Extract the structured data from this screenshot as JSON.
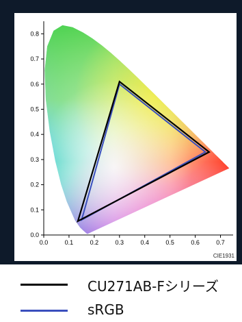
{
  "chart_data": {
    "type": "scatter",
    "source_label": "CIE1931",
    "xlim": [
      0.0,
      0.75
    ],
    "ylim": [
      0.0,
      0.85
    ],
    "x_ticks": [
      "0.0",
      "0.1",
      "0.2",
      "0.3",
      "0.4",
      "0.5",
      "0.6",
      "0.7"
    ],
    "y_ticks": [
      "0.0",
      "0.1",
      "0.2",
      "0.3",
      "0.4",
      "0.5",
      "0.6",
      "0.7",
      "0.8"
    ],
    "grid": false,
    "legend_placement": "bottom",
    "spectral_locus": [
      [
        0.1741,
        0.005
      ],
      [
        0.1738,
        0.0049
      ],
      [
        0.1733,
        0.0048
      ],
      [
        0.1726,
        0.0048
      ],
      [
        0.1714,
        0.0051
      ],
      [
        0.1689,
        0.0069
      ],
      [
        0.1644,
        0.0109
      ],
      [
        0.1566,
        0.0177
      ],
      [
        0.144,
        0.0297
      ],
      [
        0.1241,
        0.0578
      ],
      [
        0.0913,
        0.1327
      ],
      [
        0.0687,
        0.2007
      ],
      [
        0.0454,
        0.295
      ],
      [
        0.0235,
        0.4127
      ],
      [
        0.0082,
        0.5384
      ],
      [
        0.0039,
        0.6548
      ],
      [
        0.0139,
        0.7502
      ],
      [
        0.0389,
        0.812
      ],
      [
        0.0743,
        0.8338
      ],
      [
        0.1142,
        0.8262
      ],
      [
        0.1547,
        0.8059
      ],
      [
        0.1929,
        0.7816
      ],
      [
        0.2296,
        0.7543
      ],
      [
        0.2658,
        0.7243
      ],
      [
        0.3016,
        0.6923
      ],
      [
        0.3373,
        0.6589
      ],
      [
        0.3731,
        0.6245
      ],
      [
        0.4087,
        0.5896
      ],
      [
        0.4441,
        0.5547
      ],
      [
        0.4788,
        0.5202
      ],
      [
        0.5125,
        0.4866
      ],
      [
        0.5448,
        0.4544
      ],
      [
        0.5752,
        0.4242
      ],
      [
        0.6029,
        0.3965
      ],
      [
        0.627,
        0.3725
      ],
      [
        0.6482,
        0.3514
      ],
      [
        0.6658,
        0.334
      ],
      [
        0.6801,
        0.3197
      ],
      [
        0.6915,
        0.3083
      ],
      [
        0.7006,
        0.2993
      ],
      [
        0.7079,
        0.292
      ],
      [
        0.714,
        0.2859
      ],
      [
        0.719,
        0.2809
      ],
      [
        0.723,
        0.277
      ],
      [
        0.726,
        0.274
      ],
      [
        0.7283,
        0.2717
      ],
      [
        0.73,
        0.27
      ],
      [
        0.7311,
        0.2689
      ],
      [
        0.732,
        0.268
      ],
      [
        0.7347,
        0.2653
      ]
    ],
    "series": [
      {
        "name": "CU271AB-Fシリーズ",
        "color": "#000000",
        "points": [
          [
            0.3,
            0.61
          ],
          [
            0.655,
            0.33
          ],
          [
            0.135,
            0.055
          ]
        ]
      },
      {
        "name": "sRGB",
        "color": "#3a4fbd",
        "points": [
          [
            0.3,
            0.6
          ],
          [
            0.64,
            0.33
          ],
          [
            0.15,
            0.06
          ]
        ]
      }
    ]
  }
}
